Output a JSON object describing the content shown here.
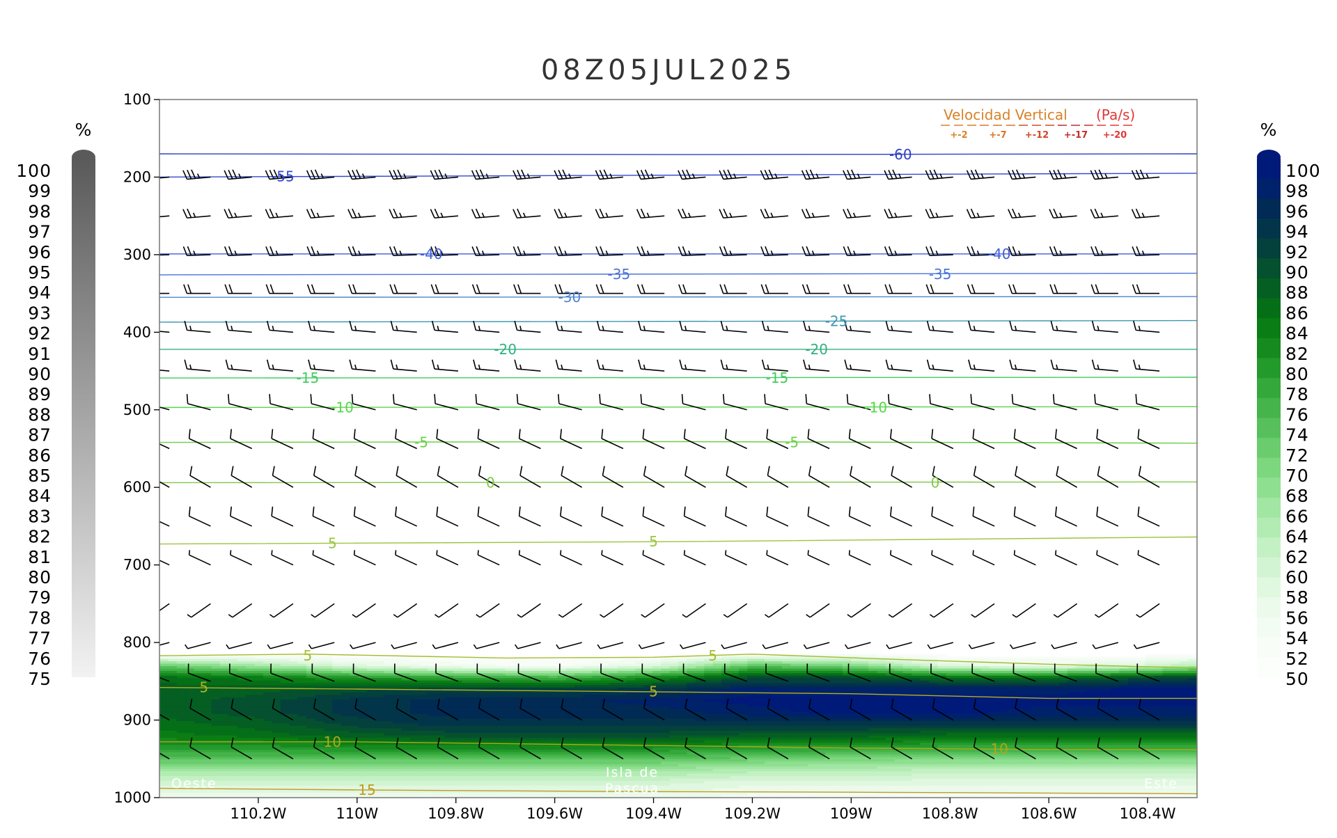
{
  "chart_data": {
    "type": "heatmap",
    "title": "08Z05JUL2025",
    "x_ticks": [
      {
        "value": -110.2,
        "label": "110.2W"
      },
      {
        "value": -110.0,
        "label": "110W"
      },
      {
        "value": -109.8,
        "label": "109.8W"
      },
      {
        "value": -109.6,
        "label": "109.6W"
      },
      {
        "value": -109.4,
        "label": "109.4W"
      },
      {
        "value": -109.2,
        "label": "109.2W"
      },
      {
        "value": -109.0,
        "label": "109W"
      },
      {
        "value": -108.8,
        "label": "108.8W"
      },
      {
        "value": -108.6,
        "label": "108.6W"
      },
      {
        "value": -108.4,
        "label": "108.4W"
      }
    ],
    "xlim": [
      -110.4,
      -108.3
    ],
    "y_ticks": [
      100,
      200,
      300,
      400,
      500,
      600,
      700,
      800,
      900,
      1000
    ],
    "ylim": [
      100,
      1000
    ],
    "y_inverted": true,
    "grid": false,
    "location_labels": {
      "left": "Oeste",
      "center_line1": "Isla de",
      "center_line2": "Pascua",
      "right": "Este"
    },
    "left_colorbar": {
      "unit": "%",
      "levels": [
        100,
        99,
        98,
        97,
        96,
        95,
        94,
        93,
        92,
        91,
        90,
        89,
        88,
        87,
        86,
        85,
        84,
        83,
        82,
        81,
        80,
        79,
        78,
        77,
        76,
        75
      ],
      "color_max": "#5a5a5a",
      "color_min": "#f2f2f2"
    },
    "right_colorbar": {
      "unit": "%",
      "levels": [
        100,
        98,
        96,
        94,
        92,
        90,
        88,
        86,
        84,
        82,
        80,
        78,
        76,
        74,
        72,
        70,
        68,
        66,
        64,
        62,
        60,
        58,
        56,
        54,
        52,
        50
      ],
      "colors": [
        "#001a7a",
        "#00226a",
        "#012a55",
        "#03354a",
        "#04403c",
        "#05502f",
        "#055f22",
        "#056f18",
        "#0a7d14",
        "#168a1e",
        "#259a2c",
        "#34a83a",
        "#45b44a",
        "#57c05c",
        "#6acc6d",
        "#7dd77f",
        "#8fdf90",
        "#a1e6a2",
        "#b3ecb3",
        "#c4f1c4",
        "#d3f4d3",
        "#e0f7e0",
        "#ebfaeb",
        "#f3fcf3",
        "#f8fdf8",
        "#fbfefb"
      ]
    },
    "temperature_contours": [
      {
        "value": -60,
        "points": [
          [
            -110.4,
            170
          ],
          [
            -109.35,
            171
          ],
          [
            -108.3,
            170
          ]
        ],
        "labels": [
          {
            "text": "-60",
            "x": -108.9,
            "y": 171
          }
        ],
        "color": "#2d3fc4"
      },
      {
        "value": -55,
        "points": [
          [
            -110.4,
            200
          ],
          [
            -108.3,
            195
          ]
        ],
        "labels": [
          {
            "text": "-55",
            "x": -110.15,
            "y": 199
          }
        ],
        "color": "#3348d0"
      },
      {
        "value": -40,
        "points": [
          [
            -110.4,
            299
          ],
          [
            -108.3,
            299
          ]
        ],
        "labels": [
          {
            "text": "-40",
            "x": -109.85,
            "y": 299
          },
          {
            "text": "-40",
            "x": -108.7,
            "y": 299
          }
        ],
        "color": "#3f5ed8"
      },
      {
        "value": -35,
        "points": [
          [
            -110.4,
            326
          ],
          [
            -108.3,
            324
          ]
        ],
        "labels": [
          {
            "text": "-35",
            "x": -109.47,
            "y": 325
          },
          {
            "text": "-35",
            "x": -108.82,
            "y": 325
          }
        ],
        "color": "#4a72d8"
      },
      {
        "value": -30,
        "points": [
          [
            -110.4,
            355
          ],
          [
            -108.3,
            354
          ]
        ],
        "labels": [
          {
            "text": "-30",
            "x": -109.57,
            "y": 355
          }
        ],
        "color": "#4f84d4"
      },
      {
        "value": -25,
        "points": [
          [
            -110.4,
            387
          ],
          [
            -108.3,
            385
          ]
        ],
        "labels": [
          {
            "text": "-25",
            "x": -109.03,
            "y": 386
          }
        ],
        "color": "#3e96b0"
      },
      {
        "value": -20,
        "points": [
          [
            -110.4,
            422
          ],
          [
            -108.3,
            422
          ]
        ],
        "labels": [
          {
            "text": "-20",
            "x": -109.7,
            "y": 422
          },
          {
            "text": "-20",
            "x": -109.07,
            "y": 422
          }
        ],
        "color": "#33b080"
      },
      {
        "value": -15,
        "points": [
          [
            -110.4,
            459
          ],
          [
            -108.3,
            458
          ]
        ],
        "labels": [
          {
            "text": "-15",
            "x": -110.1,
            "y": 459
          },
          {
            "text": "-15",
            "x": -109.15,
            "y": 459
          }
        ],
        "color": "#3fcc5e"
      },
      {
        "value": -10,
        "points": [
          [
            -110.4,
            497
          ],
          [
            -108.3,
            496
          ]
        ],
        "labels": [
          {
            "text": "-10",
            "x": -110.03,
            "y": 497
          },
          {
            "text": "-10",
            "x": -108.95,
            "y": 497
          }
        ],
        "color": "#55d846"
      },
      {
        "value": -5,
        "points": [
          [
            -110.4,
            542
          ],
          [
            -109.35,
            541
          ],
          [
            -108.3,
            543
          ]
        ],
        "labels": [
          {
            "text": "-5",
            "x": -109.87,
            "y": 542
          },
          {
            "text": "-5",
            "x": -109.12,
            "y": 542
          }
        ],
        "color": "#6ccf48"
      },
      {
        "value": 0,
        "points": [
          [
            -110.4,
            594
          ],
          [
            -108.3,
            593
          ]
        ],
        "labels": [
          {
            "text": "0",
            "x": -109.73,
            "y": 594
          },
          {
            "text": "0",
            "x": -108.83,
            "y": 594
          }
        ],
        "color": "#80c84a"
      },
      {
        "value": 5,
        "points": [
          [
            -110.4,
            673
          ],
          [
            -109.35,
            670
          ],
          [
            -108.3,
            664
          ]
        ],
        "labels": [
          {
            "text": "5",
            "x": -110.05,
            "y": 672
          },
          {
            "text": "5",
            "x": -109.4,
            "y": 670
          }
        ],
        "color": "#9bc43c"
      },
      {
        "value": 5,
        "points": [
          [
            -110.4,
            817
          ],
          [
            -110.1,
            815
          ],
          [
            -109.7,
            820
          ],
          [
            -109.4,
            819
          ],
          [
            -109.2,
            815
          ],
          [
            -108.9,
            822
          ],
          [
            -108.6,
            828
          ],
          [
            -108.3,
            833
          ]
        ],
        "labels": [
          {
            "text": "5",
            "x": -110.1,
            "y": 817
          },
          {
            "text": "5",
            "x": -109.28,
            "y": 817
          }
        ],
        "color": "#a4bb2c"
      },
      {
        "value": 5,
        "points": [
          [
            -110.4,
            858
          ],
          [
            -110.0,
            860
          ],
          [
            -109.5,
            863
          ],
          [
            -109.0,
            866
          ],
          [
            -108.6,
            872
          ],
          [
            -108.3,
            872
          ]
        ],
        "labels": [
          {
            "text": "5",
            "x": -110.31,
            "y": 858
          },
          {
            "text": "5",
            "x": -109.4,
            "y": 863
          }
        ],
        "color": "#b2b320"
      },
      {
        "value": 10,
        "points": [
          [
            -110.4,
            928
          ],
          [
            -110.0,
            928
          ],
          [
            -109.5,
            932
          ],
          [
            -109.0,
            936
          ],
          [
            -108.6,
            938
          ],
          [
            -108.3,
            938
          ]
        ],
        "labels": [
          {
            "text": "10",
            "x": -110.05,
            "y": 928
          },
          {
            "text": "10",
            "x": -108.7,
            "y": 937
          }
        ],
        "color": "#b0a818"
      },
      {
        "value": 15,
        "points": [
          [
            -110.4,
            988
          ],
          [
            -110.0,
            990
          ],
          [
            -109.5,
            992
          ],
          [
            -109.0,
            993
          ],
          [
            -108.3,
            995
          ]
        ],
        "labels": [
          {
            "text": "15",
            "x": -109.98,
            "y": 990
          }
        ],
        "color": "#c29a20"
      }
    ],
    "legend": {
      "title_a": "Velocidad Vertical",
      "title_b": "(Pa/s)",
      "placement": "top-right",
      "entries": [
        {
          "label": "+-2",
          "color": "#d8822a"
        },
        {
          "label": "+-7",
          "color": "#d8742a"
        },
        {
          "label": "+-12",
          "color": "#d0482a"
        },
        {
          "label": "+-17",
          "color": "#c22e2e"
        },
        {
          "label": "+-20",
          "color": "#e03838"
        }
      ]
    },
    "wind_barb_levels": [
      {
        "p": 200,
        "dir": 265,
        "speed": 35
      },
      {
        "p": 250,
        "dir": 265,
        "speed": 25
      },
      {
        "p": 300,
        "dir": 268,
        "speed": 25
      },
      {
        "p": 350,
        "dir": 270,
        "speed": 20
      },
      {
        "p": 400,
        "dir": 275,
        "speed": 15
      },
      {
        "p": 450,
        "dir": 275,
        "speed": 15
      },
      {
        "p": 500,
        "dir": 285,
        "speed": 10
      },
      {
        "p": 550,
        "dir": 295,
        "speed": 10
      },
      {
        "p": 600,
        "dir": 300,
        "speed": 10
      },
      {
        "p": 650,
        "dir": 295,
        "speed": 10
      },
      {
        "p": 700,
        "dir": 295,
        "speed": 5
      },
      {
        "p": 750,
        "dir": 235,
        "speed": 5
      },
      {
        "p": 800,
        "dir": 255,
        "speed": 5
      },
      {
        "p": 850,
        "dir": 290,
        "speed": 10
      },
      {
        "p": 900,
        "dir": 300,
        "speed": 10
      },
      {
        "p": 950,
        "dir": 300,
        "speed": 10
      }
    ],
    "rh_field": {
      "x": [
        -110.4,
        -110.2,
        -110.0,
        -109.8,
        -109.6,
        -109.4,
        -109.2,
        -109.0,
        -108.8,
        -108.6,
        -108.4,
        -108.3
      ],
      "p": [
        815,
        830,
        845,
        860,
        875,
        890,
        905,
        920,
        935,
        950,
        965,
        980,
        1000
      ],
      "values": [
        [
          50,
          50,
          50,
          50,
          50,
          50,
          52,
          52,
          50,
          50,
          50,
          50
        ],
        [
          72,
          66,
          58,
          54,
          52,
          58,
          74,
          70,
          58,
          56,
          60,
          64
        ],
        [
          86,
          84,
          80,
          78,
          76,
          82,
          90,
          90,
          86,
          86,
          90,
          92
        ],
        [
          88,
          88,
          90,
          92,
          92,
          94,
          98,
          98,
          98,
          98,
          100,
          100
        ],
        [
          88,
          90,
          94,
          96,
          96,
          98,
          100,
          100,
          100,
          100,
          100,
          100
        ],
        [
          88,
          90,
          94,
          96,
          96,
          96,
          98,
          100,
          100,
          98,
          98,
          98
        ],
        [
          86,
          88,
          92,
          94,
          94,
          94,
          94,
          94,
          94,
          94,
          94,
          94
        ],
        [
          84,
          86,
          88,
          90,
          90,
          90,
          88,
          88,
          86,
          86,
          86,
          86
        ],
        [
          80,
          80,
          82,
          82,
          82,
          82,
          80,
          80,
          78,
          78,
          78,
          78
        ],
        [
          74,
          74,
          74,
          74,
          74,
          74,
          72,
          70,
          70,
          70,
          70,
          70
        ],
        [
          66,
          66,
          66,
          66,
          66,
          66,
          64,
          64,
          62,
          62,
          62,
          62
        ],
        [
          60,
          60,
          60,
          60,
          60,
          60,
          58,
          58,
          58,
          58,
          58,
          58
        ],
        [
          56,
          56,
          56,
          56,
          56,
          56,
          54,
          54,
          54,
          54,
          54,
          54
        ]
      ]
    }
  }
}
